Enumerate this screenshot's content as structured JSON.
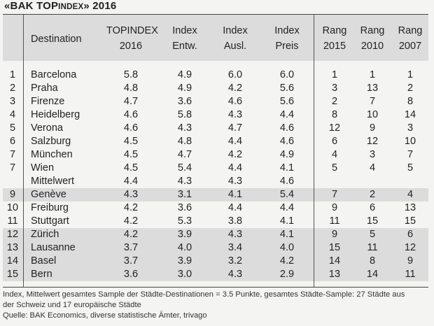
{
  "title_main": "«BAK TOP",
  "title_small": "INDEX",
  "title_rest": "» 2016",
  "headers": {
    "destination": "Destination",
    "topindex_1": "TOPINDEX",
    "topindex_2": "2016",
    "entw_1": "Index",
    "entw_2": "Entw.",
    "ausl_1": "Index",
    "ausl_2": "Ausl.",
    "preis_1": "Index",
    "preis_2": "Preis",
    "r2015_1": "Rang",
    "r2015_2": "2015",
    "r2010_1": "Rang",
    "r2010_2": "2010",
    "r2007_1": "Rang",
    "r2007_2": "2007"
  },
  "rows": [
    {
      "rank": "1",
      "dest": "Barcelona",
      "top": "5.8",
      "entw": "4.9",
      "ausl": "6.0",
      "preis": "6.0",
      "r2015": "1",
      "r2010": "1",
      "r2007": "1",
      "shade": false
    },
    {
      "rank": "2",
      "dest": "Praha",
      "top": "4.8",
      "entw": "4.9",
      "ausl": "4.2",
      "preis": "5.6",
      "r2015": "3",
      "r2010": "13",
      "r2007": "2",
      "shade": false
    },
    {
      "rank": "3",
      "dest": "Firenze",
      "top": "4.7",
      "entw": "3.6",
      "ausl": "4.6",
      "preis": "5.6",
      "r2015": "2",
      "r2010": "7",
      "r2007": "8",
      "shade": false
    },
    {
      "rank": "4",
      "dest": "Heidelberg",
      "top": "4.6",
      "entw": "5.8",
      "ausl": "4.3",
      "preis": "4.4",
      "r2015": "8",
      "r2010": "10",
      "r2007": "14",
      "shade": false
    },
    {
      "rank": "5",
      "dest": "Verona",
      "top": "4.6",
      "entw": "4.3",
      "ausl": "4.7",
      "preis": "4.6",
      "r2015": "12",
      "r2010": "9",
      "r2007": "3",
      "shade": false
    },
    {
      "rank": "6",
      "dest": "Salzburg",
      "top": "4.5",
      "entw": "4.8",
      "ausl": "4.4",
      "preis": "4.6",
      "r2015": "6",
      "r2010": "12",
      "r2007": "10",
      "shade": false
    },
    {
      "rank": "7",
      "dest": "München",
      "top": "4.5",
      "entw": "4.7",
      "ausl": "4.2",
      "preis": "4.9",
      "r2015": "4",
      "r2010": "3",
      "r2007": "7",
      "shade": false
    },
    {
      "rank": "7",
      "dest": "Wien",
      "top": "4.5",
      "entw": "5.4",
      "ausl": "4.4",
      "preis": "4.1",
      "r2015": "5",
      "r2010": "4",
      "r2007": "5",
      "shade": false
    },
    {
      "rank": "",
      "dest": "Mittelwert",
      "top": "4.4",
      "entw": "4.3",
      "ausl": "4.3",
      "preis": "4.6",
      "r2015": "",
      "r2010": "",
      "r2007": "",
      "shade": false
    },
    {
      "rank": "9",
      "dest": "Genève",
      "top": "4.3",
      "entw": "3.1",
      "ausl": "4.1",
      "preis": "5.4",
      "r2015": "7",
      "r2010": "2",
      "r2007": "4",
      "shade": true
    },
    {
      "rank": "10",
      "dest": "Freiburg",
      "top": "4.2",
      "entw": "3.6",
      "ausl": "4.4",
      "preis": "4.4",
      "r2015": "9",
      "r2010": "6",
      "r2007": "13",
      "shade": false
    },
    {
      "rank": "11",
      "dest": "Stuttgart",
      "top": "4.2",
      "entw": "5.3",
      "ausl": "3.8",
      "preis": "4.1",
      "r2015": "11",
      "r2010": "15",
      "r2007": "15",
      "shade": false
    },
    {
      "rank": "12",
      "dest": "Zürich",
      "top": "4.2",
      "entw": "3.9",
      "ausl": "4.3",
      "preis": "4.1",
      "r2015": "9",
      "r2010": "5",
      "r2007": "6",
      "shade": true
    },
    {
      "rank": "13",
      "dest": "Lausanne",
      "top": "3.7",
      "entw": "4.0",
      "ausl": "3.4",
      "preis": "4.0",
      "r2015": "15",
      "r2010": "11",
      "r2007": "12",
      "shade": true
    },
    {
      "rank": "14",
      "dest": "Basel",
      "top": "3.7",
      "entw": "3.9",
      "ausl": "3.2",
      "preis": "4.2",
      "r2015": "14",
      "r2010": "8",
      "r2007": "9",
      "shade": true
    },
    {
      "rank": "15",
      "dest": "Bern",
      "top": "3.6",
      "entw": "3.0",
      "ausl": "4.3",
      "preis": "2.9",
      "r2015": "13",
      "r2010": "14",
      "r2007": "11",
      "shade": true
    }
  ],
  "footer_line1": "Index, Mittelwert gesamtes Sample der Städte-Destinationen = 3.5 Punkte, gesamtes Städte-Sample: 27 Städte aus",
  "footer_line2": "der Schweiz und 17 europäische Städte",
  "footer_line3": "Quelle: BAK Economics, diverse statistische Ämter, trivago"
}
